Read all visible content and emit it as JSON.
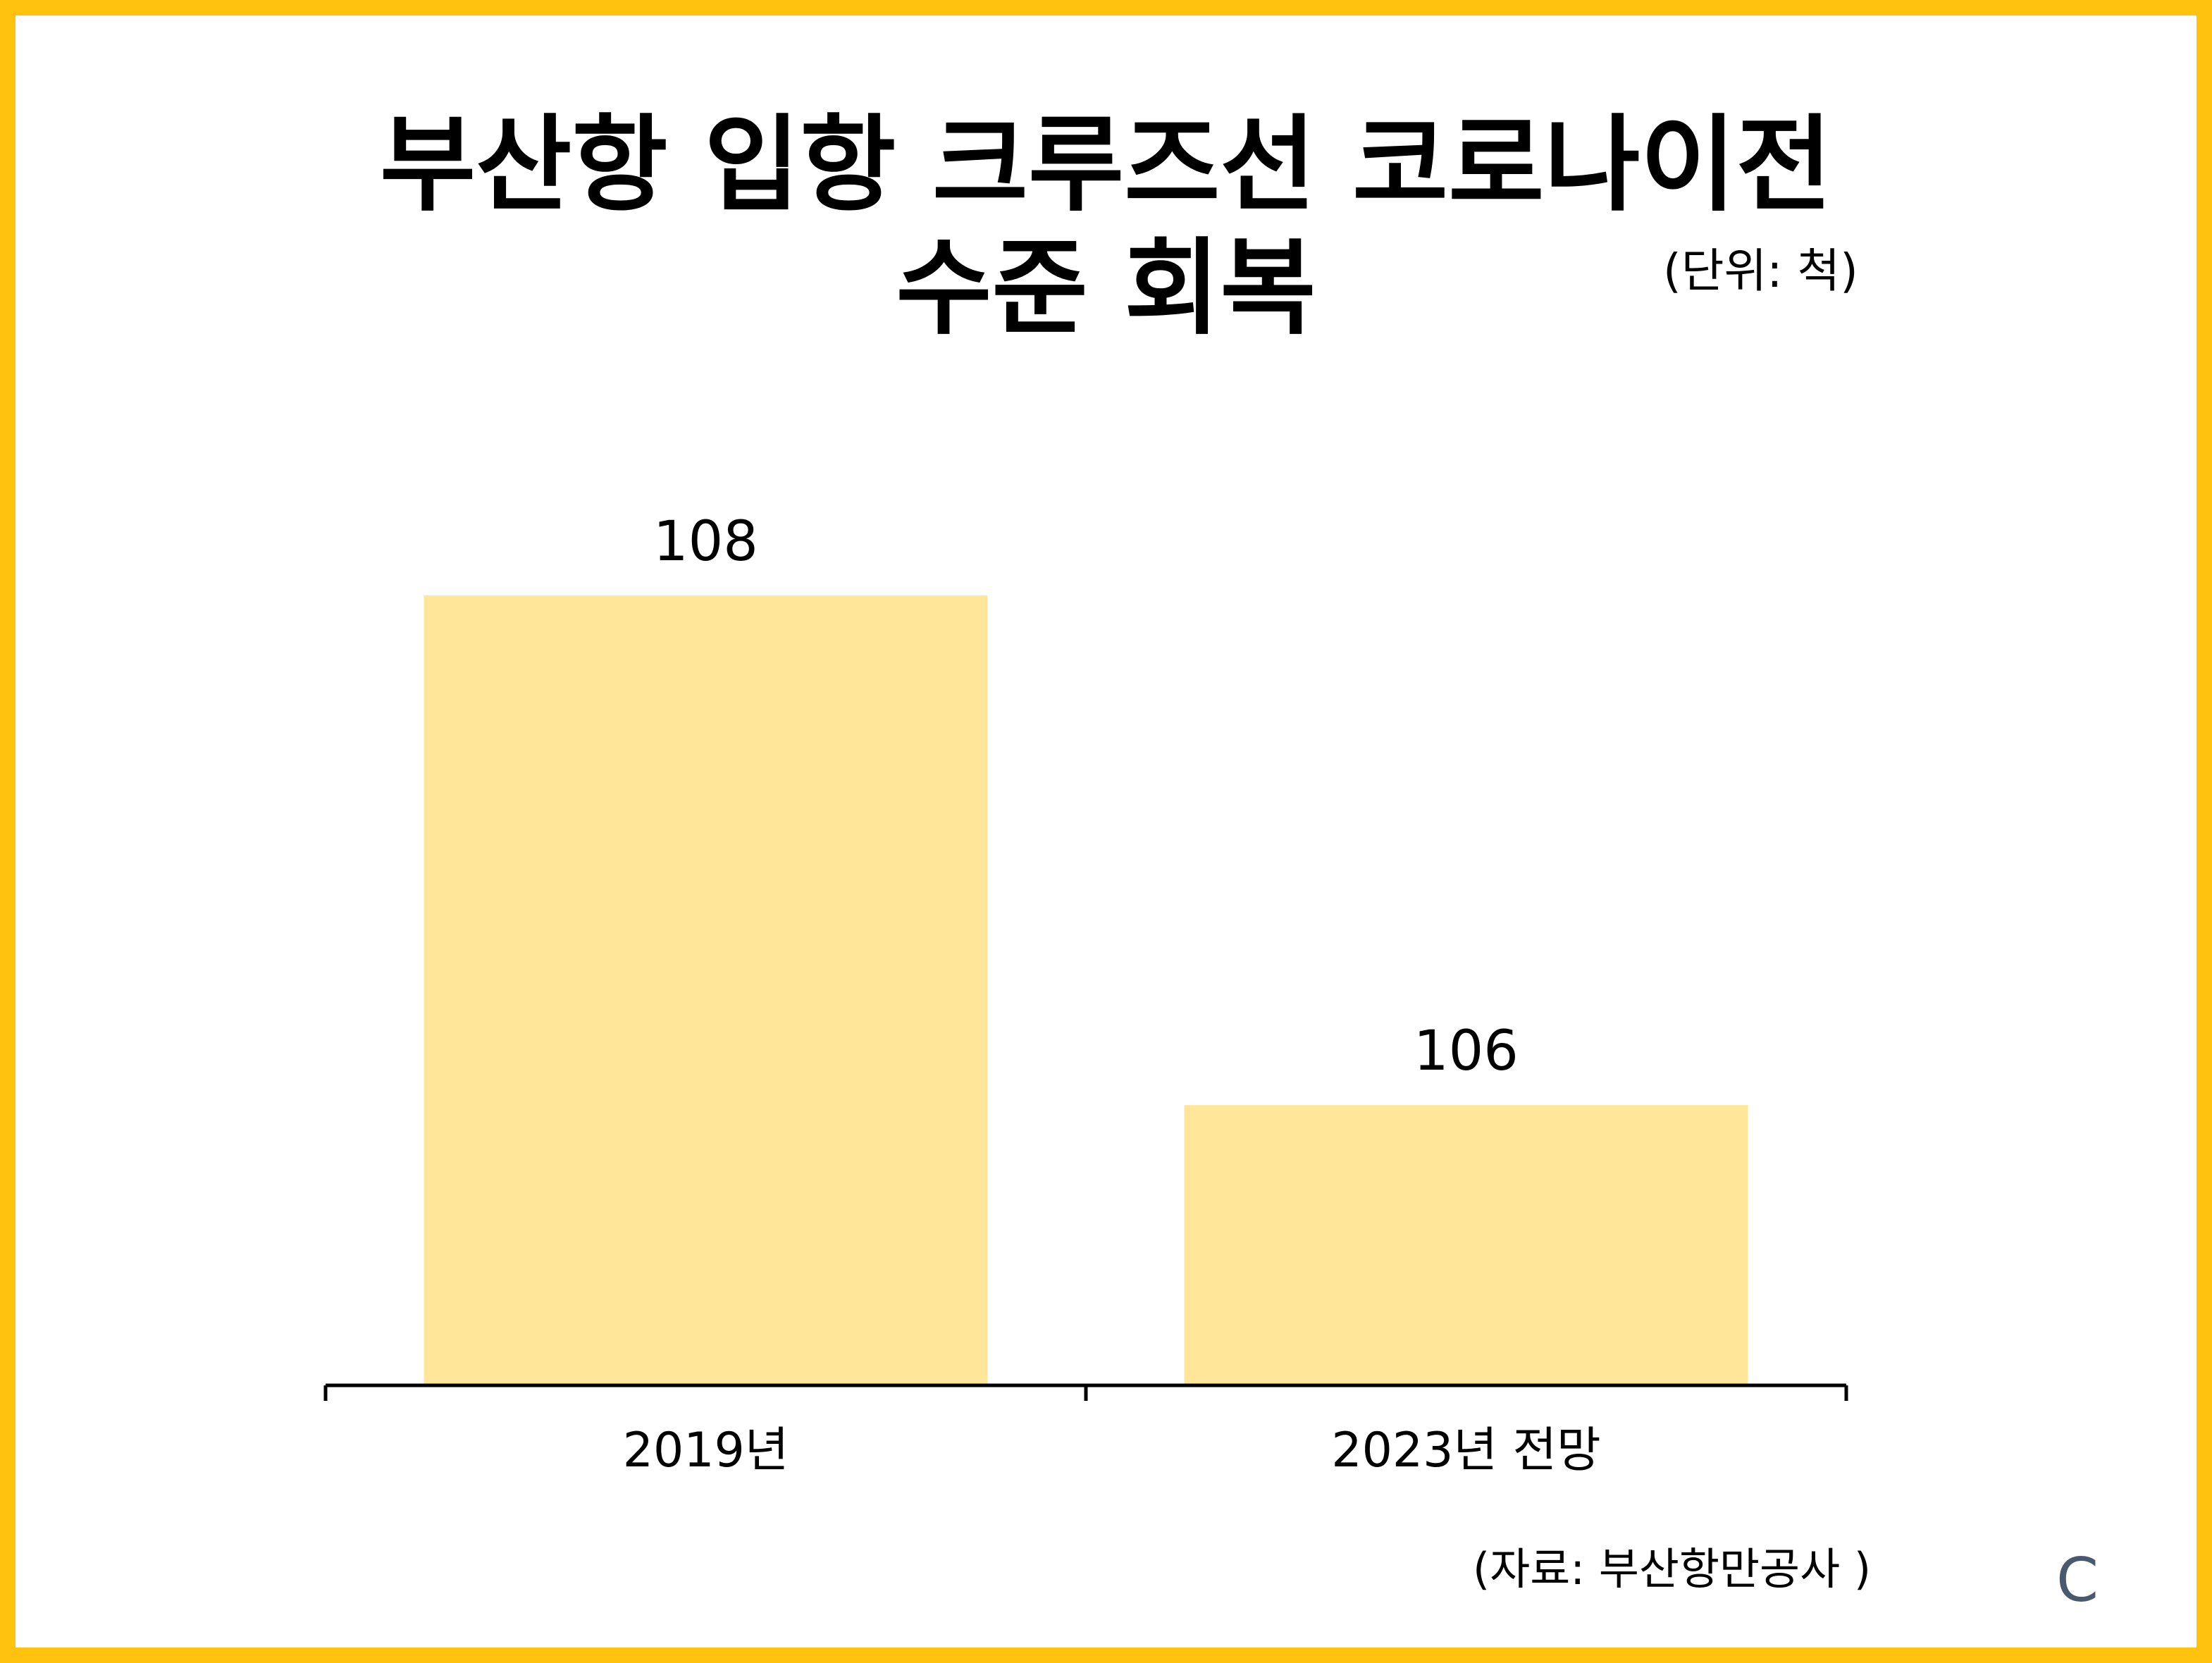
{
  "title_line1": "부산항 입항 크루즈선 코로나이전",
  "title_line2": "수준 회복",
  "unit_label": "(단위: 척)",
  "source_label": "(자료: 부산항만공사 )",
  "logo_text": "C",
  "colors": {
    "frame": "#FFC20E",
    "bar": "#FFE699",
    "text": "#000000",
    "logo": "#4A5A6E"
  },
  "chart_data": {
    "type": "bar",
    "categories": [
      "2019년",
      "2023년 전망"
    ],
    "values": [
      108,
      106
    ],
    "title": "부산항 입항 크루즈선 코로나이전 수준 회복",
    "unit": "(단위: 척)",
    "xlabel": "",
    "ylabel": "",
    "ylim": [
      104.9,
      108
    ],
    "grid": false,
    "legend": "none",
    "data_labels": true
  }
}
